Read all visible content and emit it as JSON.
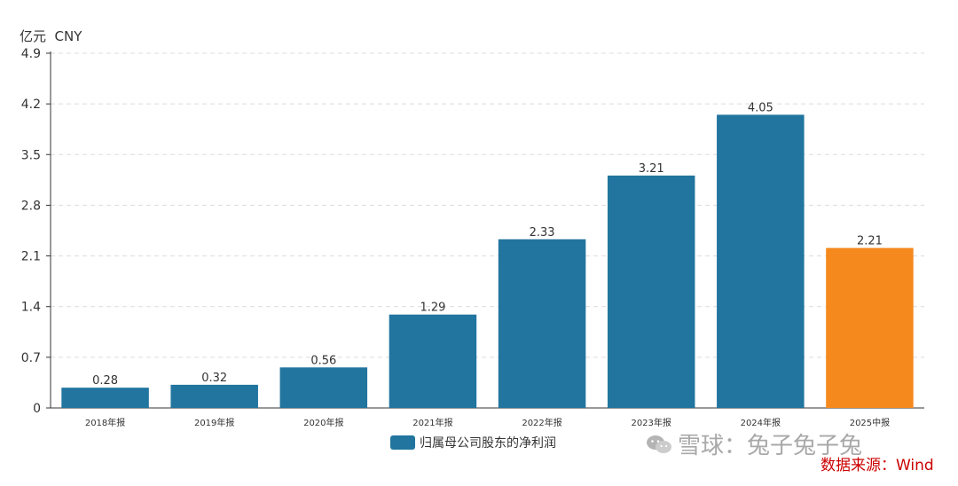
{
  "chart_data": {
    "type": "bar",
    "unit_label": "亿元  CNY",
    "categories": [
      "2018年报",
      "2019年报",
      "2020年报",
      "2021年报",
      "2022年报",
      "2023年报",
      "2024年报",
      "2025中报"
    ],
    "series": [
      {
        "name": "归属母公司股东的净利润",
        "values": [
          0.28,
          0.32,
          0.56,
          1.29,
          2.33,
          3.21,
          4.05,
          2.21
        ],
        "data_labels": [
          "0.28",
          "0.32",
          "0.56",
          "1.29",
          "2.33",
          "3.21",
          "4.05",
          "2.21"
        ]
      }
    ],
    "y_ticks": [
      "0",
      "0.7",
      "1.4",
      "2.1",
      "2.8",
      "3.5",
      "4.2",
      "4.9"
    ],
    "ylim": [
      0,
      4.9
    ],
    "grid": true,
    "legend_position": "bottom-center",
    "colors": {
      "bar": "#21759f",
      "highlight_bar": "#f5891e",
      "highlight_index": 7,
      "grid": "#dcdcdc",
      "axis": "#333333"
    }
  },
  "watermark": {
    "icon": "wechat-icon",
    "text": "雪球：兔子兔子兔"
  },
  "source_note": "数据来源：Wind"
}
